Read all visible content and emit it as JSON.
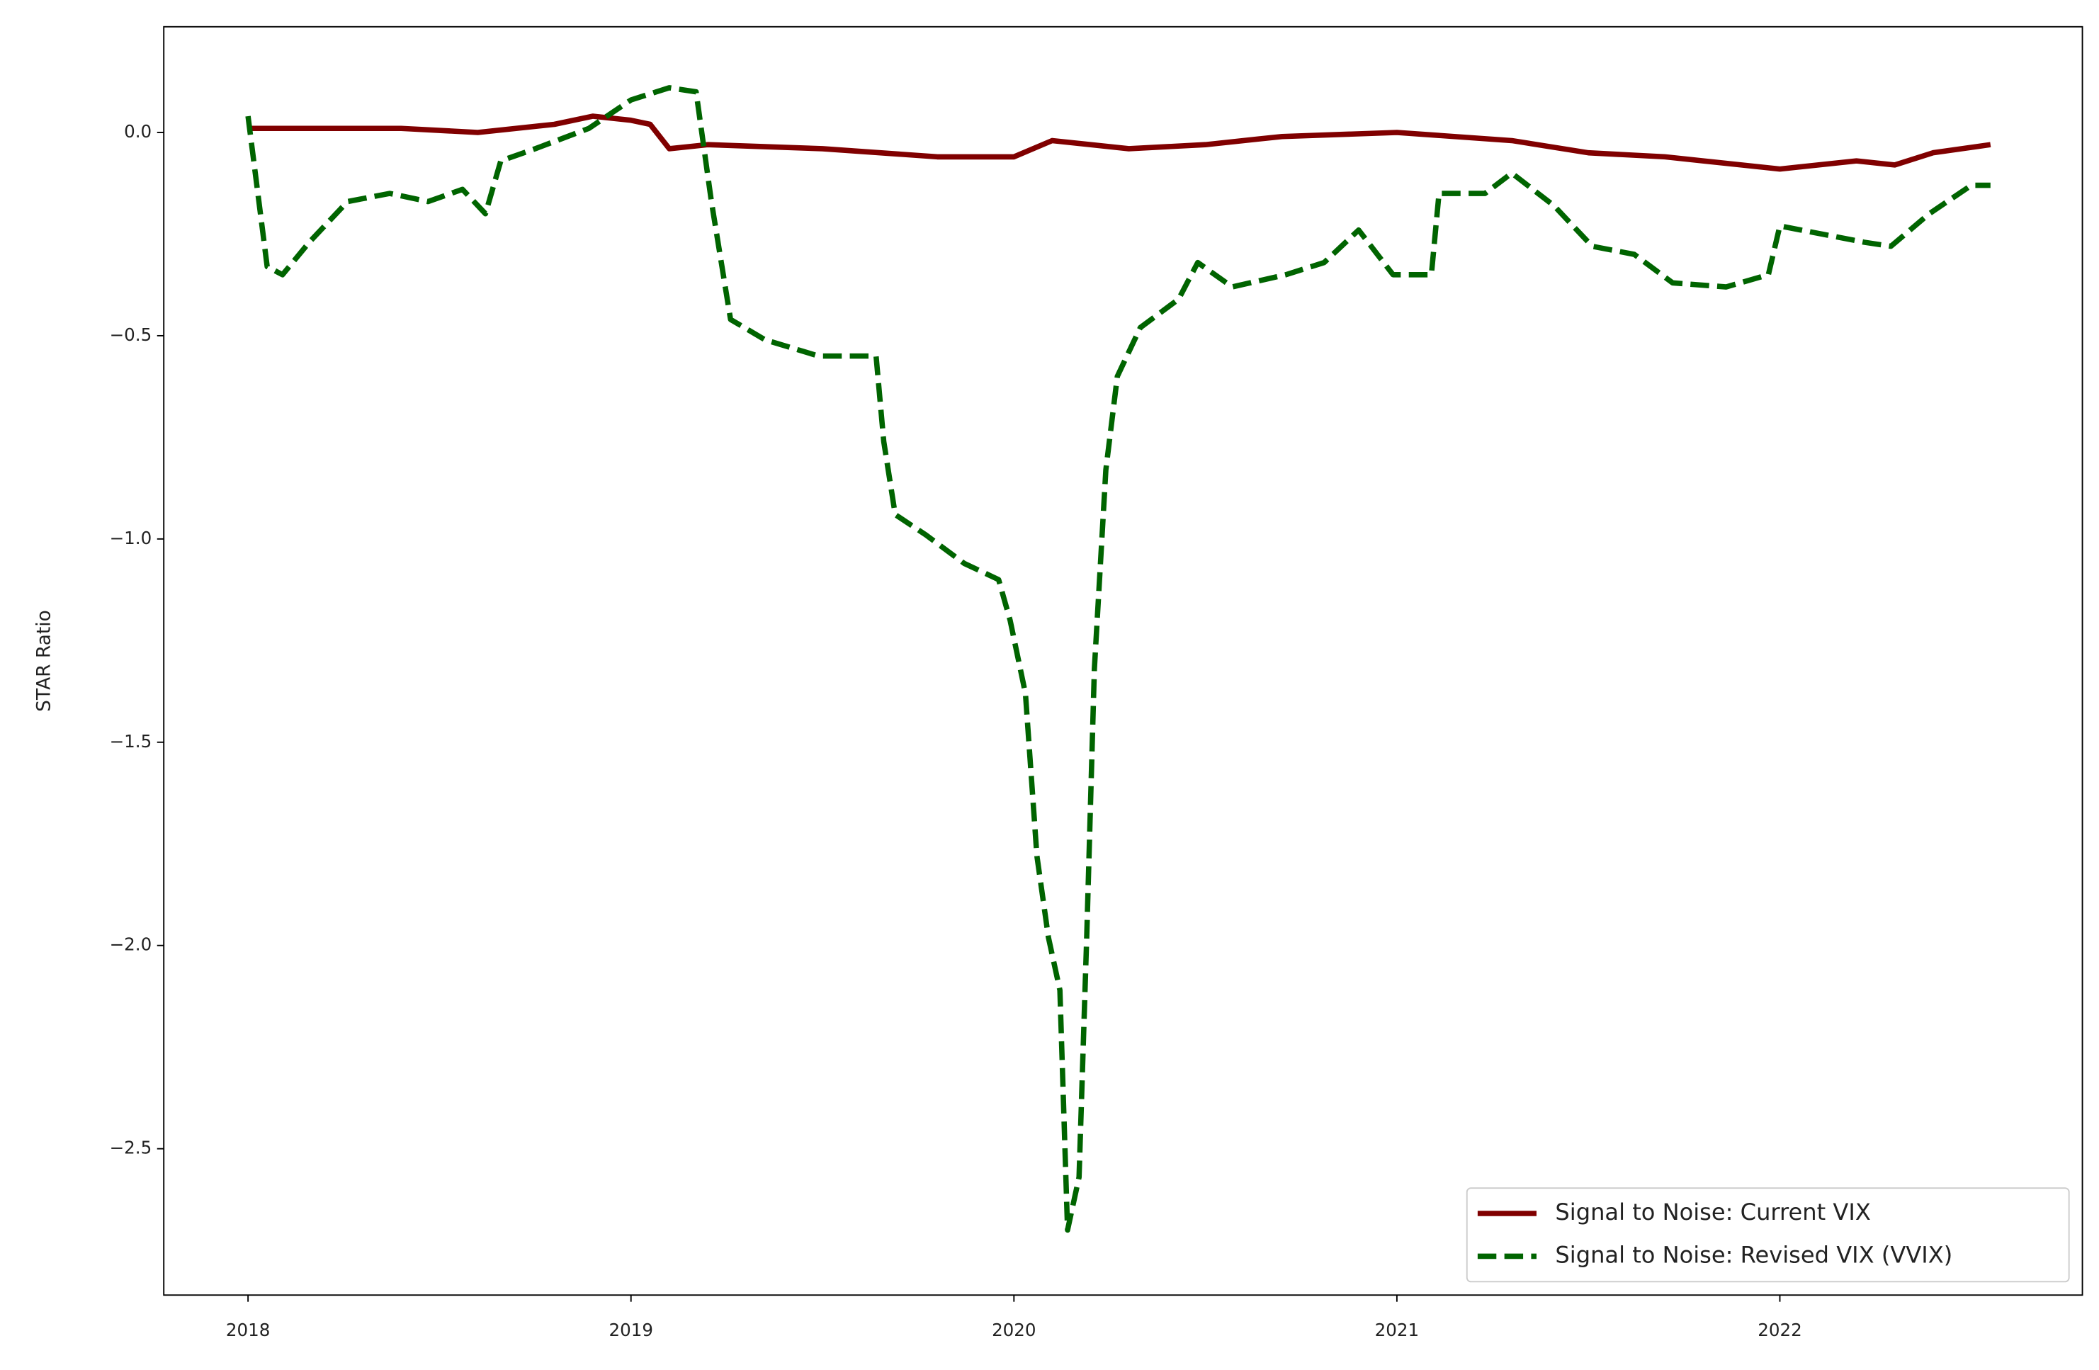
{
  "chart_data": {
    "type": "line",
    "ylabel": "STAR Ratio",
    "xlim": [
      2017.78,
      2022.79
    ],
    "ylim": [
      -2.86,
      0.26
    ],
    "xticks": [
      2018,
      2019,
      2020,
      2021,
      2022
    ],
    "yticks": [
      {
        "value": -2.5,
        "label": "−2.5"
      },
      {
        "value": -2.0,
        "label": "−2.0"
      },
      {
        "value": -1.5,
        "label": "−1.5"
      },
      {
        "value": -1.0,
        "label": "−1.0"
      },
      {
        "value": -0.5,
        "label": "−0.5"
      },
      {
        "value": 0.0,
        "label": "0.0"
      }
    ],
    "legend": "lower right",
    "series": [
      {
        "name": "Signal to Noise: Current VIX",
        "color": "#800000",
        "dashed": false,
        "x": [
          2018.0,
          2018.2,
          2018.4,
          2018.6,
          2018.8,
          2018.9,
          2019.0,
          2019.05,
          2019.1,
          2019.2,
          2019.5,
          2019.8,
          2020.0,
          2020.1,
          2020.3,
          2020.5,
          2020.7,
          2021.0,
          2021.3,
          2021.5,
          2021.7,
          2021.9,
          2022.0,
          2022.2,
          2022.3,
          2022.4,
          2022.55
        ],
        "values": [
          0.01,
          0.01,
          0.01,
          0.0,
          0.02,
          0.04,
          0.03,
          0.02,
          -0.04,
          -0.03,
          -0.04,
          -0.06,
          -0.06,
          -0.02,
          -0.04,
          -0.03,
          -0.01,
          0.0,
          -0.02,
          -0.05,
          -0.06,
          -0.08,
          -0.09,
          -0.07,
          -0.08,
          -0.05,
          -0.03
        ]
      },
      {
        "name": "Signal to Noise: Revised VIX (VVIX)",
        "color": "#006400",
        "dashed": true,
        "x": [
          2018.0,
          2018.05,
          2018.09,
          2018.16,
          2018.26,
          2018.37,
          2018.47,
          2018.56,
          2018.62,
          2018.66,
          2018.75,
          2018.89,
          2019.0,
          2019.1,
          2019.17,
          2019.21,
          2019.26,
          2019.35,
          2019.49,
          2019.64,
          2019.66,
          2019.69,
          2019.77,
          2019.87,
          2019.96,
          2019.99,
          2020.03,
          2020.06,
          2020.09,
          2020.12,
          2020.14,
          2020.17,
          2020.19,
          2020.21,
          2020.24,
          2020.27,
          2020.33,
          2020.43,
          2020.48,
          2020.57,
          2020.71,
          2020.81,
          2020.9,
          2020.99,
          2021.09,
          2021.11,
          2021.23,
          2021.3,
          2021.41,
          2021.51,
          2021.62,
          2021.72,
          2021.86,
          2021.97,
          2022.0,
          2022.11,
          2022.22,
          2022.29,
          2022.39,
          2022.5,
          2022.55
        ],
        "values": [
          0.04,
          -0.33,
          -0.35,
          -0.27,
          -0.17,
          -0.15,
          -0.17,
          -0.14,
          -0.2,
          -0.07,
          -0.04,
          0.01,
          0.08,
          0.11,
          0.1,
          -0.17,
          -0.46,
          -0.51,
          -0.55,
          -0.55,
          -0.76,
          -0.94,
          -0.99,
          -1.06,
          -1.1,
          -1.2,
          -1.38,
          -1.78,
          -1.98,
          -2.11,
          -2.7,
          -2.57,
          -1.98,
          -1.32,
          -0.83,
          -0.6,
          -0.48,
          -0.41,
          -0.32,
          -0.38,
          -0.35,
          -0.32,
          -0.24,
          -0.35,
          -0.35,
          -0.15,
          -0.15,
          -0.1,
          -0.18,
          -0.28,
          -0.3,
          -0.37,
          -0.38,
          -0.35,
          -0.23,
          -0.25,
          -0.27,
          -0.28,
          -0.2,
          -0.13,
          -0.13
        ]
      }
    ]
  }
}
